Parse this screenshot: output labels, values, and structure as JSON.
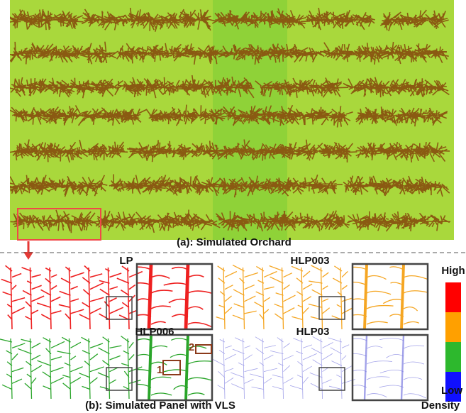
{
  "figure": {
    "orchard_caption": "(a): Simulated Orchard",
    "panel_caption": "(b): Simulated Panel with VLS",
    "panels": [
      {
        "label": "LP"
      },
      {
        "label": "HLP003"
      },
      {
        "label": "HLP006"
      },
      {
        "label": "HLP03"
      }
    ],
    "callouts": [
      "1",
      "2"
    ],
    "colorbar": {
      "high": "High",
      "low": "Low",
      "title": "Density"
    }
  }
}
